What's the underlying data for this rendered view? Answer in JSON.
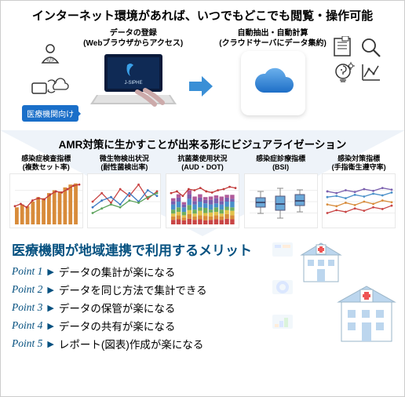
{
  "headline": "インターネット環境があれば、いつでもどこでも閲覧・操作可能",
  "badge": "医療機関向け",
  "upload_col": {
    "l1": "データの登録",
    "l2": "(Webブラウザからアクセス)"
  },
  "cloud_col": {
    "l1": "自動抽出・自動計算",
    "l2": "(クラウドサーバにデータ集約)"
  },
  "laptop_brand": "J-SIPHE",
  "viz_title": "AMR対策に生かすことが出来る形にビジュアライゼーション",
  "charts": [
    {
      "l1": "感染症検査指標",
      "l2": "(複数セット率)",
      "type": "bar_line",
      "bar_color": "#d88b3a",
      "line_color": "#c13a3a",
      "bars": [
        30,
        35,
        32,
        40,
        48,
        46,
        55,
        60,
        58,
        65,
        70,
        72
      ],
      "line": [
        32,
        36,
        30,
        42,
        46,
        44,
        52,
        58,
        56,
        62,
        68,
        70
      ]
    },
    {
      "l1": "微生物検出状況",
      "l2": "(耐性菌検出率)",
      "type": "multiline",
      "series": [
        {
          "color": "#c94545",
          "pts": [
            40,
            55,
            38,
            62,
            50,
            70,
            45,
            58
          ]
        },
        {
          "color": "#3a77c1",
          "pts": [
            30,
            42,
            48,
            35,
            55,
            40,
            60,
            50
          ]
        },
        {
          "color": "#5aa25a",
          "pts": [
            20,
            28,
            35,
            30,
            42,
            38,
            48,
            55
          ]
        }
      ]
    },
    {
      "l1": "抗菌薬使用状況",
      "l2": "(AUD・DOT)",
      "type": "stacked",
      "stack_colors": [
        "#c94545",
        "#d88b3a",
        "#e2c24a",
        "#6fae5e",
        "#4a90c9",
        "#7a5fae",
        "#b05a9a"
      ],
      "cols": [
        [
          8,
          6,
          5,
          7,
          9,
          6,
          5
        ],
        [
          9,
          7,
          6,
          8,
          10,
          7,
          6
        ],
        [
          7,
          5,
          4,
          6,
          8,
          5,
          4
        ],
        [
          10,
          8,
          7,
          9,
          11,
          8,
          7
        ],
        [
          8,
          6,
          5,
          7,
          9,
          6,
          8
        ],
        [
          9,
          7,
          8,
          6,
          10,
          7,
          6
        ],
        [
          7,
          8,
          5,
          9,
          8,
          6,
          5
        ],
        [
          8,
          6,
          7,
          5,
          9,
          8,
          6
        ],
        [
          9,
          7,
          6,
          8,
          7,
          9,
          5
        ],
        [
          8,
          6,
          5,
          7,
          9,
          6,
          8
        ],
        [
          10,
          8,
          7,
          6,
          9,
          7,
          5
        ],
        [
          9,
          7,
          8,
          6,
          10,
          5,
          7
        ]
      ],
      "line_color": "#c13a3a",
      "line": [
        55,
        58,
        50,
        62,
        60,
        64,
        58,
        56,
        60,
        62,
        66,
        64
      ]
    },
    {
      "l1": "感染症診療指標",
      "l2": "(BSI)",
      "type": "box",
      "box_color": "#6aa8d8",
      "boxes": [
        {
          "x": 20,
          "lo": 50,
          "q1": 42,
          "med": 36,
          "q3": 30,
          "hi": 22
        },
        {
          "x": 45,
          "lo": 56,
          "q1": 46,
          "med": 38,
          "q3": 28,
          "hi": 18
        },
        {
          "x": 70,
          "lo": 48,
          "q1": 40,
          "med": 34,
          "q3": 26,
          "hi": 20
        }
      ]
    },
    {
      "l1": "感染対策指標",
      "l2": "(手指衛生遵守率)",
      "type": "multiline",
      "series": [
        {
          "color": "#c94545",
          "pts": [
            20,
            25,
            22,
            28,
            24,
            30,
            27,
            33
          ]
        },
        {
          "color": "#d88b3a",
          "pts": [
            35,
            32,
            38,
            34,
            40,
            36,
            42,
            39
          ]
        },
        {
          "color": "#4a90c9",
          "pts": [
            48,
            50,
            46,
            52,
            49,
            54,
            51,
            56
          ]
        },
        {
          "color": "#7a5fae",
          "pts": [
            58,
            55,
            60,
            57,
            62,
            59,
            64,
            61
          ]
        }
      ]
    }
  ],
  "merit_title": "医療機関が地域連携で利用するメリット",
  "merit_title_color": "#065180",
  "points": [
    {
      "p": "Point 1",
      "t": "データの集計が楽になる"
    },
    {
      "p": "Point 2",
      "t": "データを同じ方法で集計できる"
    },
    {
      "p": "Point 3",
      "t": "データの保管が楽になる"
    },
    {
      "p": "Point 4",
      "t": "データの共有が楽になる"
    },
    {
      "p": "Point 5",
      "t": "レポート(図表)作成が楽になる"
    }
  ],
  "colors": {
    "accent": "#065180",
    "badge": "#1a6fc9",
    "cloud": "#2a7bd4",
    "cloud_light": "#6bb0ec"
  },
  "hospital": {
    "wall": "#ffffff",
    "roof": "#bcd6ee",
    "cross": "#e55",
    "outline": "#8aa"
  }
}
